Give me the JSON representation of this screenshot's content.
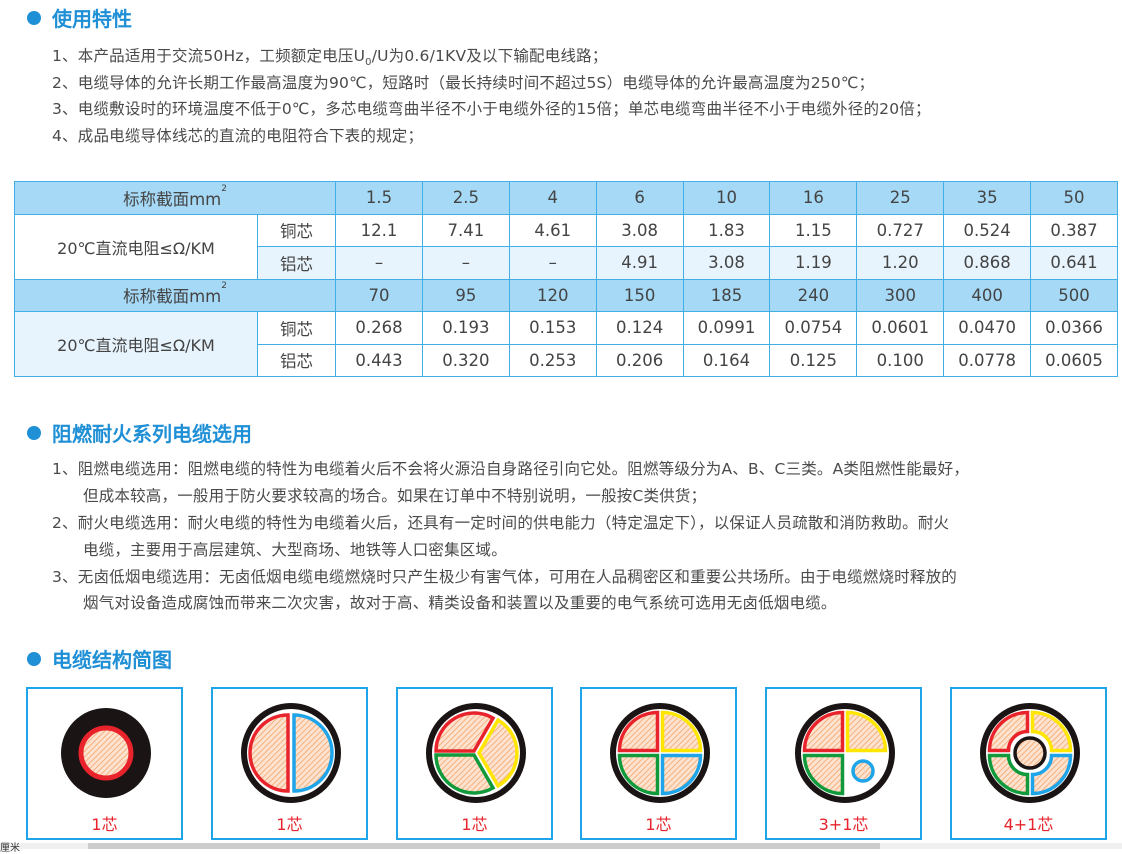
{
  "section1": {
    "title": "使用特性",
    "items": [
      "1、本产品适用于交流50Hz，工频额定电压U",
      "2、电缆导体的允许长期工作最高温度为90℃，短路时（最长持续时间不超过5S）电缆导体的允许最高温度为250℃；",
      "3、电缆敷设时的环境温度不低于0℃，多芯电缆弯曲半径不小于电缆外径的15倍；单芯电缆弯曲半径不小于电缆外径的20倍；",
      "4、成品电缆导体线芯的直流的电阻符合下表的规定；"
    ],
    "item1_sub": "0",
    "item1_rest": "/U为0.6/1KV及以下输配电线路；"
  },
  "table": {
    "header_label": "标称截面mm",
    "header_sup": "2",
    "row_label": "20℃直流电阻≤Ω/KM",
    "copper": "铜芯",
    "aluminum": "铝芯",
    "blocks": [
      {
        "sizes": [
          "1.5",
          "2.5",
          "4",
          "6",
          "10",
          "16",
          "25",
          "35",
          "50"
        ],
        "copper": [
          "12.1",
          "7.41",
          "4.61",
          "3.08",
          "1.83",
          "1.15",
          "0.727",
          "0.524",
          "0.387"
        ],
        "aluminum": [
          "–",
          "–",
          "–",
          "4.91",
          "3.08",
          "1.19",
          "1.20",
          "0.868",
          "0.641"
        ]
      },
      {
        "sizes": [
          "70",
          "95",
          "120",
          "150",
          "185",
          "240",
          "300",
          "400",
          "500"
        ],
        "copper": [
          "0.268",
          "0.193",
          "0.153",
          "0.124",
          "0.0991",
          "0.0754",
          "0.0601",
          "0.0470",
          "0.0366"
        ],
        "aluminum": [
          "0.443",
          "0.320",
          "0.253",
          "0.206",
          "0.164",
          "0.125",
          "0.100",
          "0.0778",
          "0.0605"
        ]
      }
    ]
  },
  "section2": {
    "title": "阻燃耐火系列电缆选用",
    "lines": [
      "1、阻燃电缆选用：阻燃电缆的特性为电缆着火后不会将火源沿自身路径引向它处。阻燃等级分为A、B、C三类。A类阻燃性能最好，",
      "但成本较高，一般用于防火要求较高的场合。如果在订单中不特别说明，一般按C类供货；",
      "2、耐火电缆选用：耐火电缆的特性为电缆着火后，还具有一定时间的供电能力（特定温定下），以保证人员疏散和消防救助。耐火",
      "电缆，主要用于高层建筑、大型商场、地铁等人口密集区域。",
      "3、无卤低烟电缆选用：无卤低烟电缆电缆燃烧时只产生极少有害气体，可用在人品稠密区和重要公共场所。由于电缆燃烧时释放的",
      "烟气对设备造成腐蚀而带来二次灾害，故对于高、精类设备和装置以及重要的电气系统可选用无卤低烟电缆。"
    ]
  },
  "section3": {
    "title": "电缆结构简图",
    "diagrams": [
      {
        "caption": "1芯",
        "type": "single"
      },
      {
        "caption": "1芯",
        "type": "two"
      },
      {
        "caption": "1芯",
        "type": "three"
      },
      {
        "caption": "1芯",
        "type": "four"
      },
      {
        "caption": "3+1芯",
        "type": "three-plus-one"
      },
      {
        "caption": "4+1芯",
        "type": "four-plus-one"
      }
    ]
  },
  "colors": {
    "accent": "#1f8fd6",
    "red": "#e8232b",
    "yellow": "#ffe600",
    "green": "#119a3c",
    "blue": "#1ea4e8",
    "hatch": "#f2a46b"
  },
  "statusbar": {
    "unit": "厘米"
  }
}
